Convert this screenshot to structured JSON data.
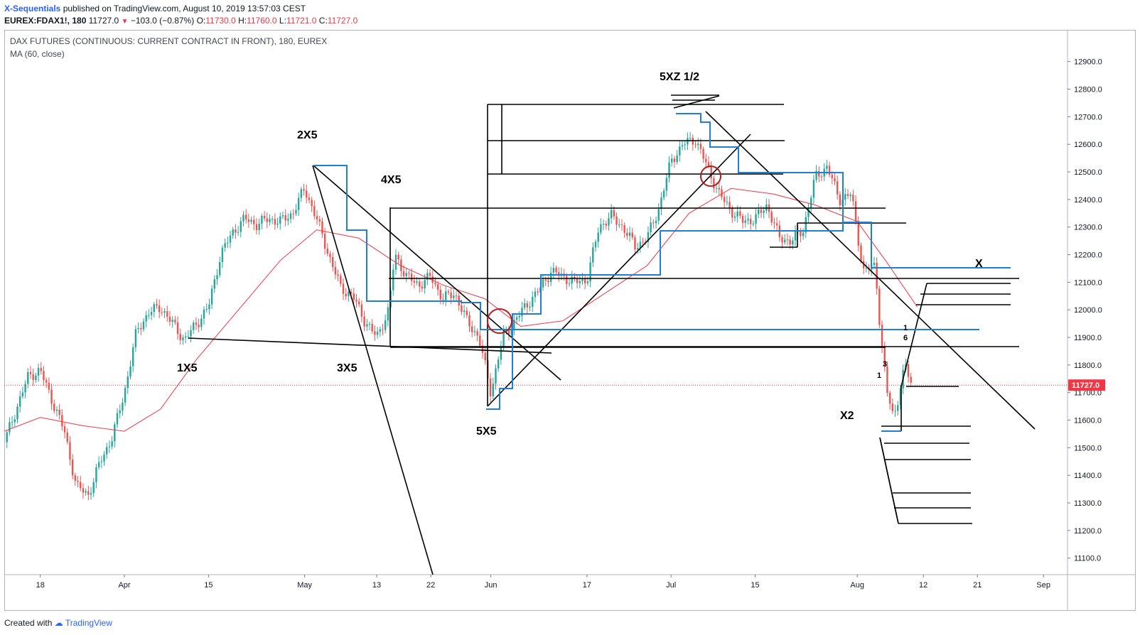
{
  "header": {
    "author": "X-Sequentials",
    "published_text": "published on TradingView.com, August 10, 2019 13:57:03 CEST",
    "symbol": "EUREX:FDAX1!, 180",
    "last": "11727.0",
    "change_arrow": "▼",
    "change": "−103.0 (−0.87%)",
    "o_label": "O:",
    "o_value": "11730.0",
    "h_label": "H:",
    "h_value": "11760.0",
    "l_label": "L:",
    "l_value": "11721.0",
    "c_label": "C:",
    "c_value": "11727.0"
  },
  "footer": {
    "created_with": "Created with",
    "brand": "TradingView"
  },
  "colors": {
    "up": "#26a69a",
    "down": "#ef5350",
    "ma": "#f23645",
    "blue_lines": "#1e7fd6",
    "black_lines": "#000000",
    "circle": "#b71c1c",
    "price_tag": "#f23645"
  },
  "icons": {
    "tradingview_logo": "tradingview-logo-icon"
  },
  "chart_data": {
    "type": "candlestick",
    "title": "DAX FUTURES (CONTINUOUS: CURRENT CONTRACT IN FRONT), 180, EUREX",
    "indicator": "MA (60, close)",
    "price_label": "11727.0",
    "y_ticks": [
      "12900.0",
      "12800.0",
      "12700.0",
      "12600.0",
      "12500.0",
      "12400.0",
      "12300.0",
      "12200.0",
      "12100.0",
      "12000.0",
      "11900.0",
      "11800.0",
      "11700.0",
      "11600.0",
      "11500.0",
      "11400.0",
      "11300.0",
      "11200.0",
      "11100.0"
    ],
    "ylim": [
      11040,
      13015
    ],
    "x_ticks": [
      {
        "label": "18",
        "date": "2019-03-18"
      },
      {
        "label": "Apr",
        "date": "2019-04-01"
      },
      {
        "label": "15",
        "date": "2019-04-15"
      },
      {
        "label": "May",
        "date": "2019-05-01"
      },
      {
        "label": "13",
        "date": "2019-05-13"
      },
      {
        "label": "22",
        "date": "2019-05-22"
      },
      {
        "label": "Jun",
        "date": "2019-06-01"
      },
      {
        "label": "17",
        "date": "2019-06-17"
      },
      {
        "label": "Jul",
        "date": "2019-07-01"
      },
      {
        "label": "15",
        "date": "2019-07-15"
      },
      {
        "label": "Aug",
        "date": "2019-08-01"
      },
      {
        "label": "12",
        "date": "2019-08-12"
      },
      {
        "label": "21",
        "date": "2019-08-21"
      },
      {
        "label": "Sep",
        "date": "2019-09-01"
      }
    ],
    "xlim": [
      "2019-03-12",
      "2019-09-05"
    ],
    "price_path": [
      [
        "2019-03-12",
        11520
      ],
      [
        "2019-03-14",
        11640
      ],
      [
        "2019-03-16",
        11760
      ],
      [
        "2019-03-18",
        11780
      ],
      [
        "2019-03-20",
        11670
      ],
      [
        "2019-03-22",
        11560
      ],
      [
        "2019-03-24",
        11360
      ],
      [
        "2019-03-26",
        11330
      ],
      [
        "2019-03-28",
        11450
      ],
      [
        "2019-03-30",
        11540
      ],
      [
        "2019-04-01",
        11700
      ],
      [
        "2019-04-03",
        11920
      ],
      [
        "2019-04-05",
        11990
      ],
      [
        "2019-04-07",
        12010
      ],
      [
        "2019-04-09",
        11950
      ],
      [
        "2019-04-11",
        11890
      ],
      [
        "2019-04-13",
        11950
      ],
      [
        "2019-04-15",
        12010
      ],
      [
        "2019-04-17",
        12200
      ],
      [
        "2019-04-19",
        12280
      ],
      [
        "2019-04-21",
        12330
      ],
      [
        "2019-04-23",
        12310
      ],
      [
        "2019-04-25",
        12330
      ],
      [
        "2019-04-27",
        12320
      ],
      [
        "2019-04-29",
        12350
      ],
      [
        "2019-05-01",
        12440
      ],
      [
        "2019-05-03",
        12330
      ],
      [
        "2019-05-05",
        12200
      ],
      [
        "2019-05-07",
        12080
      ],
      [
        "2019-05-09",
        12050
      ],
      [
        "2019-05-11",
        11960
      ],
      [
        "2019-05-13",
        11900
      ],
      [
        "2019-05-15",
        12000
      ],
      [
        "2019-05-16",
        12200
      ],
      [
        "2019-05-18",
        12120
      ],
      [
        "2019-05-20",
        12090
      ],
      [
        "2019-05-22",
        12120
      ],
      [
        "2019-05-24",
        12040
      ],
      [
        "2019-05-26",
        12060
      ],
      [
        "2019-05-28",
        11960
      ],
      [
        "2019-05-30",
        11900
      ],
      [
        "2019-06-01",
        11700
      ],
      [
        "2019-06-03",
        11900
      ],
      [
        "2019-06-05",
        11960
      ],
      [
        "2019-06-07",
        12020
      ],
      [
        "2019-06-09",
        12070
      ],
      [
        "2019-06-11",
        12140
      ],
      [
        "2019-06-13",
        12120
      ],
      [
        "2019-06-15",
        12100
      ],
      [
        "2019-06-17",
        12110
      ],
      [
        "2019-06-19",
        12300
      ],
      [
        "2019-06-21",
        12340
      ],
      [
        "2019-06-23",
        12300
      ],
      [
        "2019-06-25",
        12230
      ],
      [
        "2019-06-27",
        12260
      ],
      [
        "2019-06-29",
        12370
      ],
      [
        "2019-07-01",
        12540
      ],
      [
        "2019-07-03",
        12600
      ],
      [
        "2019-07-05",
        12620
      ],
      [
        "2019-07-07",
        12520
      ],
      [
        "2019-07-09",
        12420
      ],
      [
        "2019-07-11",
        12360
      ],
      [
        "2019-07-13",
        12320
      ],
      [
        "2019-07-15",
        12330
      ],
      [
        "2019-07-17",
        12380
      ],
      [
        "2019-07-19",
        12260
      ],
      [
        "2019-07-21",
        12250
      ],
      [
        "2019-07-23",
        12290
      ],
      [
        "2019-07-25",
        12480
      ],
      [
        "2019-07-27",
        12520
      ],
      [
        "2019-07-29",
        12400
      ],
      [
        "2019-07-31",
        12420
      ],
      [
        "2019-08-02",
        12140
      ],
      [
        "2019-08-04",
        12160
      ],
      [
        "2019-08-05",
        11880
      ],
      [
        "2019-08-06",
        11700
      ],
      [
        "2019-08-07",
        11610
      ],
      [
        "2019-08-08",
        11700
      ],
      [
        "2019-08-09",
        11800
      ],
      [
        "2019-08-10",
        11727
      ]
    ],
    "ma_path": [
      [
        "2019-03-12",
        11560
      ],
      [
        "2019-03-18",
        11610
      ],
      [
        "2019-03-25",
        11580
      ],
      [
        "2019-04-01",
        11560
      ],
      [
        "2019-04-07",
        11640
      ],
      [
        "2019-04-13",
        11820
      ],
      [
        "2019-04-20",
        12000
      ],
      [
        "2019-04-27",
        12180
      ],
      [
        "2019-05-03",
        12290
      ],
      [
        "2019-05-10",
        12260
      ],
      [
        "2019-05-17",
        12160
      ],
      [
        "2019-05-24",
        12090
      ],
      [
        "2019-05-31",
        12040
      ],
      [
        "2019-06-06",
        11940
      ],
      [
        "2019-06-13",
        11960
      ],
      [
        "2019-06-20",
        12060
      ],
      [
        "2019-06-27",
        12160
      ],
      [
        "2019-07-04",
        12350
      ],
      [
        "2019-07-11",
        12440
      ],
      [
        "2019-07-18",
        12420
      ],
      [
        "2019-07-25",
        12380
      ],
      [
        "2019-08-01",
        12320
      ],
      [
        "2019-08-06",
        12170
      ],
      [
        "2019-08-11",
        12010
      ]
    ],
    "annotations": [
      "1X5",
      "2X5",
      "3X5",
      "4X5",
      "5X5",
      "5XZ 1/2",
      "X",
      "X2",
      "1",
      "3",
      "1",
      "6"
    ]
  }
}
